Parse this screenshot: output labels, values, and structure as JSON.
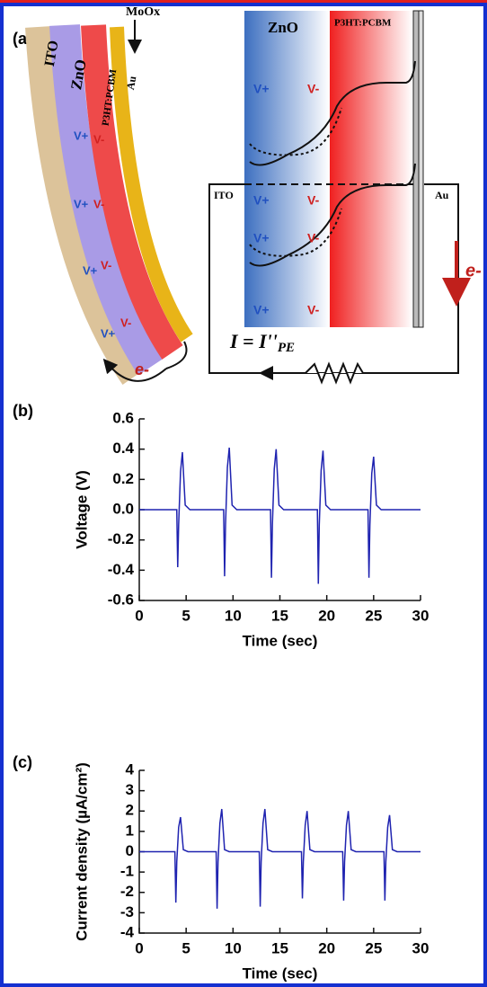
{
  "diagram": {
    "label": "(a)",
    "left": {
      "ito": "ITO",
      "zno": "ZnO",
      "p3ht": "P3HT:PCBM",
      "au": "Au",
      "moox": "MoOx",
      "charges": [
        "V+",
        "V-",
        "V+",
        "V-",
        "V+",
        "V-",
        "V+",
        "V-"
      ],
      "electron": "e-"
    },
    "right": {
      "zno": "ZnO",
      "p3ht": "P3HT:PCBM",
      "ito": "ITO",
      "au": "Au",
      "charges": [
        "V+",
        "V-",
        "V+",
        "V-",
        "V+",
        "V-",
        "V+",
        "V-"
      ],
      "electron": "e-",
      "current": "I = I''",
      "current_sub": "PE"
    }
  },
  "chart_data": [
    {
      "type": "line",
      "label": "(b)",
      "x_label": "Time (sec)",
      "y_label": "Voltage (V)",
      "xlim": [
        0,
        30
      ],
      "xticks": [
        0,
        5,
        10,
        15,
        20,
        25,
        30
      ],
      "ylim": [
        -0.6,
        0.6
      ],
      "yticks": [
        -0.6,
        -0.4,
        -0.2,
        {
          "value": 0,
          "label": "0.0"
        },
        0.2,
        0.4,
        0.6
      ],
      "series": [
        {
          "color": "#1f23b0",
          "x": [
            0,
            4.0,
            4.1,
            4.2,
            4.4,
            4.6,
            4.9,
            5.4,
            9.0,
            9.1,
            9.2,
            9.4,
            9.6,
            9.9,
            10.4,
            14.0,
            14.1,
            14.2,
            14.4,
            14.6,
            14.9,
            15.4,
            19.0,
            19.1,
            19.2,
            19.4,
            19.6,
            19.9,
            20.4,
            24.4,
            24.5,
            24.6,
            24.8,
            25.0,
            25.3,
            25.8,
            30
          ],
          "values": [
            0,
            0,
            -0.38,
            -0.1,
            0.25,
            0.38,
            0.03,
            0,
            0,
            -0.44,
            -0.1,
            0.28,
            0.41,
            0.03,
            0,
            0,
            -0.45,
            -0.1,
            0.27,
            0.4,
            0.03,
            0,
            0,
            -0.49,
            -0.1,
            0.26,
            0.39,
            0.03,
            0,
            0,
            -0.45,
            -0.1,
            0.24,
            0.35,
            0.03,
            0,
            0
          ]
        }
      ]
    },
    {
      "type": "line",
      "label": "(c)",
      "x_label": "Time (sec)",
      "y_label": "Current density (µA/cm²)",
      "xlim": [
        0,
        30
      ],
      "xticks": [
        0,
        5,
        10,
        15,
        20,
        25,
        30
      ],
      "ylim": [
        -4,
        4
      ],
      "yticks": [
        -4,
        -3,
        -2,
        -1,
        0,
        1,
        2,
        3,
        4
      ],
      "series": [
        {
          "color": "#1f23b0",
          "x": [
            0,
            3.8,
            3.9,
            4.0,
            4.2,
            4.4,
            4.7,
            5.2,
            8.2,
            8.3,
            8.4,
            8.6,
            8.8,
            9.1,
            9.6,
            12.8,
            12.9,
            13.0,
            13.2,
            13.4,
            13.7,
            14.2,
            17.3,
            17.4,
            17.5,
            17.7,
            17.9,
            18.2,
            18.7,
            21.7,
            21.8,
            21.9,
            22.1,
            22.3,
            22.6,
            23.1,
            26.1,
            26.2,
            26.3,
            26.5,
            26.7,
            27.0,
            27.5,
            30
          ],
          "values": [
            0,
            0,
            -2.5,
            -0.5,
            1.2,
            1.7,
            0.1,
            0,
            0,
            -2.8,
            -0.5,
            1.4,
            2.1,
            0.1,
            0,
            0,
            -2.7,
            -0.5,
            1.4,
            2.1,
            0.1,
            0,
            0,
            -2.3,
            -0.5,
            1.3,
            2.0,
            0.1,
            0,
            0,
            -2.4,
            -0.5,
            1.3,
            2.0,
            0.1,
            0,
            0,
            -2.4,
            -0.5,
            1.2,
            1.8,
            0.1,
            0,
            0
          ]
        }
      ]
    }
  ]
}
